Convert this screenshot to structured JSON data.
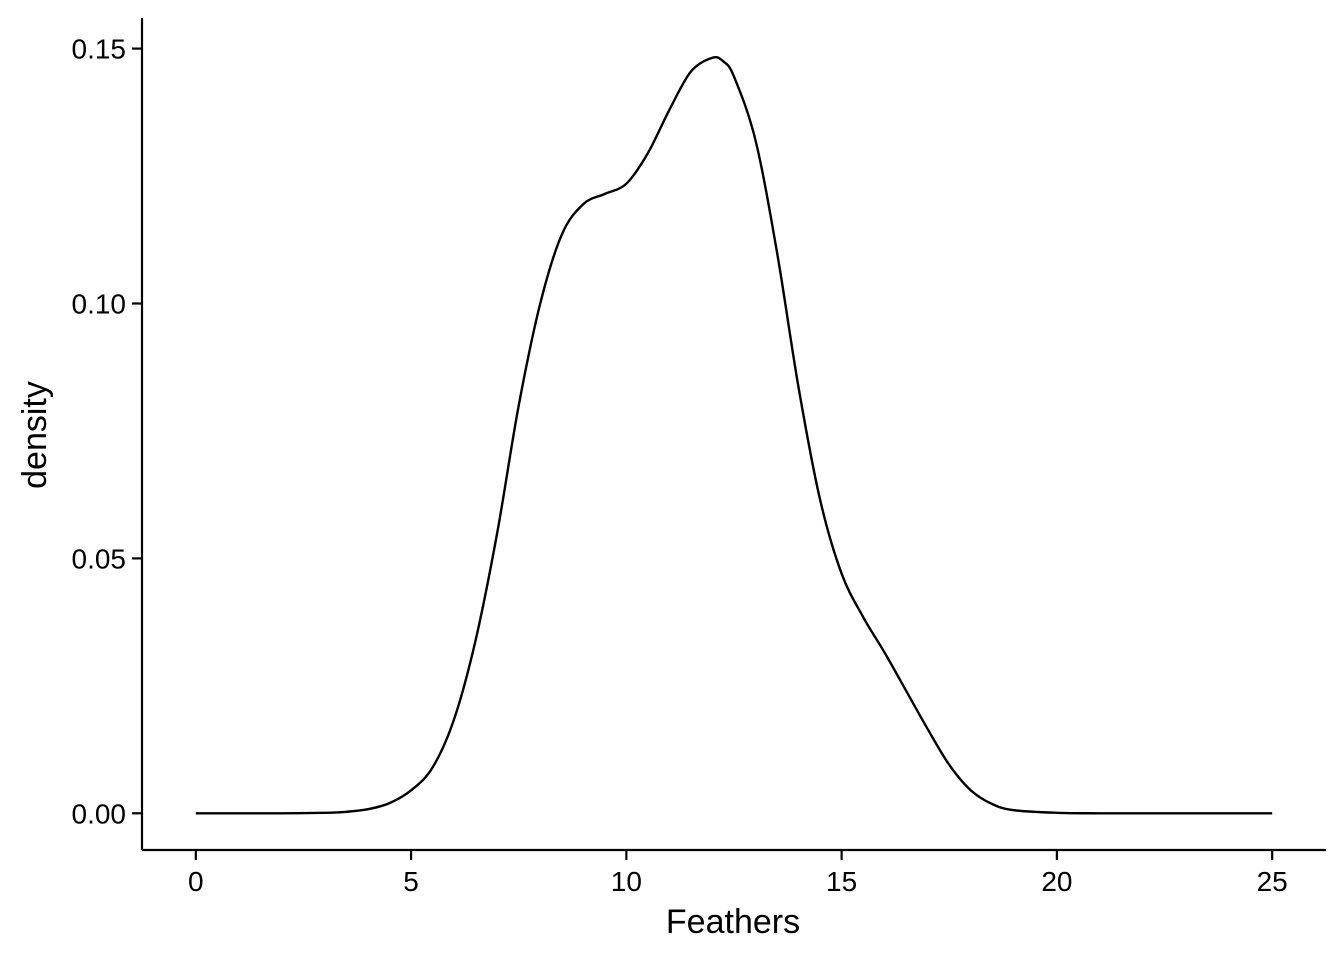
{
  "chart_data": {
    "type": "line",
    "title": "",
    "xlabel": "Feathers",
    "ylabel": "density",
    "xlim": [
      -1.25,
      26.25
    ],
    "ylim": [
      -0.0072,
      0.156
    ],
    "x_ticks": [
      0,
      5,
      10,
      15,
      20,
      25
    ],
    "x_tick_labels": [
      "0",
      "5",
      "10",
      "15",
      "20",
      "25"
    ],
    "y_ticks": [
      0.0,
      0.05,
      0.1,
      0.15
    ],
    "y_tick_labels": [
      "0.00",
      "0.05",
      "0.10",
      "0.15"
    ],
    "grid": false,
    "legend": "none",
    "line_color": "#000000",
    "series": [
      {
        "x": [
          0,
          1,
          2,
          3,
          3.5,
          4,
          4.5,
          5,
          5.5,
          6,
          6.5,
          7,
          7.5,
          8,
          8.5,
          9,
          9.5,
          10,
          10.5,
          11,
          11.5,
          12,
          12.25,
          12.5,
          13,
          13.5,
          14,
          14.5,
          15,
          15.5,
          16,
          16.5,
          17,
          17.5,
          18,
          18.5,
          19,
          20,
          21,
          22,
          23,
          24,
          25
        ],
        "y": [
          0,
          0,
          0,
          0.0001,
          0.0003,
          0.0008,
          0.002,
          0.0045,
          0.009,
          0.0185,
          0.034,
          0.055,
          0.08,
          0.1,
          0.1135,
          0.1195,
          0.1215,
          0.1235,
          0.1295,
          0.138,
          0.1455,
          0.1482,
          0.1475,
          0.1445,
          0.132,
          0.11,
          0.0835,
          0.0615,
          0.047,
          0.0385,
          0.0315,
          0.024,
          0.0165,
          0.0095,
          0.0045,
          0.0018,
          0.0006,
          0.0001,
          0,
          0,
          0,
          0,
          0
        ]
      }
    ]
  }
}
